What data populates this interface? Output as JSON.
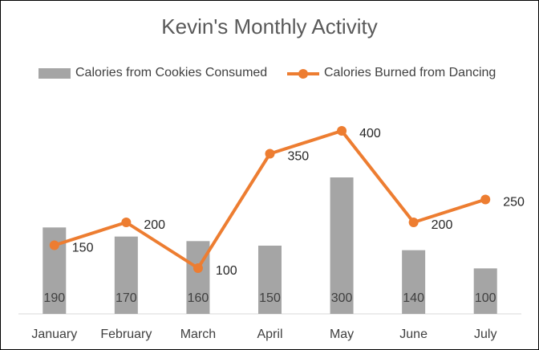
{
  "chart_data": {
    "type": "bar",
    "title": "Kevin's Monthly Activity",
    "categories": [
      "January",
      "February",
      "March",
      "April",
      "May",
      "June",
      "July"
    ],
    "series": [
      {
        "name": "Calories from Cookies Consumed",
        "type": "bar",
        "color": "#a5a5a5",
        "values": [
          190,
          170,
          160,
          150,
          300,
          140,
          100
        ]
      },
      {
        "name": "Calories Burned from Dancing",
        "type": "line",
        "color": "#ed7d31",
        "values": [
          150,
          200,
          100,
          350,
          400,
          200,
          250
        ]
      }
    ],
    "ylim": [
      0,
      500
    ],
    "grid": false,
    "legend_position": "top"
  }
}
